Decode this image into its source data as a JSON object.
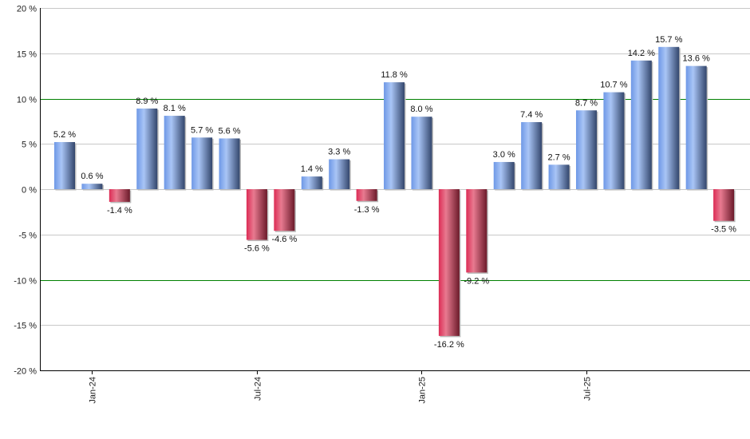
{
  "chart_data": {
    "type": "bar",
    "title": "",
    "xlabel": "",
    "ylabel": "",
    "ylim": [
      -20,
      20
    ],
    "y_ticks": [
      -20,
      -15,
      -10,
      -5,
      0,
      5,
      10,
      15,
      20
    ],
    "y_tick_suffix": " %",
    "grid": true,
    "reference_lines": [
      10,
      -10
    ],
    "reference_line_color": "#008000",
    "positive_color": "#7aa3ec",
    "negative_color": "#d93558",
    "x_tick_labels": [
      {
        "index": 1,
        "label": "Jan-24"
      },
      {
        "index": 7,
        "label": "Jul-24"
      },
      {
        "index": 13,
        "label": "Jan-25"
      },
      {
        "index": 19,
        "label": "Jul-25"
      }
    ],
    "values": [
      5.2,
      0.6,
      -1.4,
      8.9,
      8.1,
      5.7,
      5.6,
      -5.6,
      -4.6,
      1.4,
      3.3,
      -1.3,
      11.8,
      8.0,
      -16.2,
      -9.2,
      3.0,
      7.4,
      2.7,
      8.7,
      10.7,
      14.2,
      15.7,
      13.6,
      -3.5
    ],
    "data_labels": [
      "5.2 %",
      "0.6 %",
      "-1.4 %",
      "8.9 %",
      "8.1 %",
      "5.7 %",
      "5.6 %",
      "-5.6 %",
      "-4.6 %",
      "1.4 %",
      "3.3 %",
      "-1.3 %",
      "11.8 %",
      "8.0 %",
      "-16.2 %",
      "-9.2 %",
      "3.0 %",
      "7.4 %",
      "2.7 %",
      "8.7 %",
      "10.7 %",
      "14.2 %",
      "15.7 %",
      "13.6 %",
      "-3.5 %"
    ]
  }
}
